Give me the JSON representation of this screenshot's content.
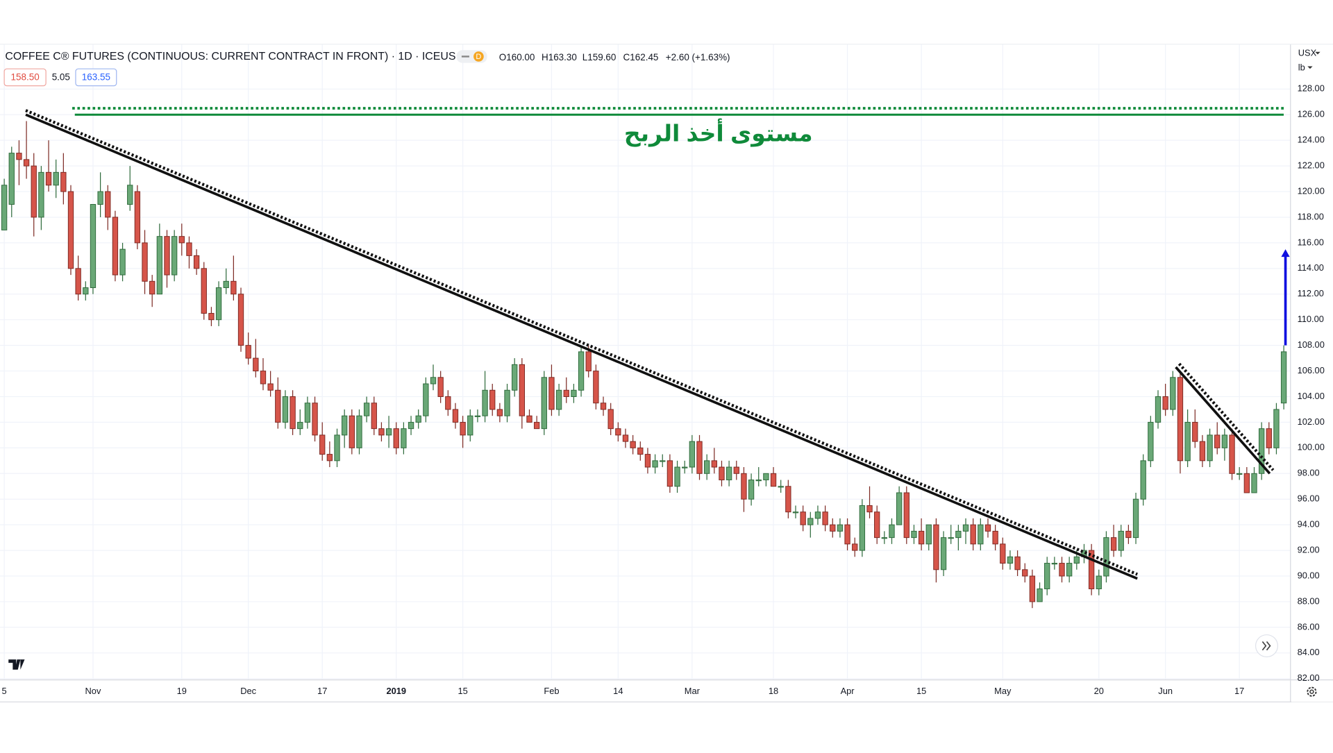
{
  "header": {
    "title": "COFFEE C® FUTURES (CONTINUOUS: CURRENT CONTRACT IN FRONT) · 1D · ICEUS",
    "badge": "D",
    "open": "O160.00",
    "high": "H163.30",
    "low": "L159.60",
    "close": "C162.45",
    "change": "+2.60 (+1.63%)",
    "bid": "158.50",
    "spread": "5.05",
    "ask": "163.55",
    "currency": "USX",
    "unit": "lb"
  },
  "chart_data": {
    "type": "candlestick",
    "categories": [
      "5",
      null,
      null,
      null,
      null,
      null,
      null,
      null,
      null,
      null,
      null,
      null,
      "Nov",
      null,
      null,
      null,
      null,
      null,
      null,
      null,
      null,
      null,
      null,
      null,
      "19",
      null,
      null,
      null,
      null,
      null,
      null,
      null,
      null,
      "Dec",
      null,
      null,
      null,
      null,
      null,
      null,
      null,
      null,
      null,
      "17",
      null,
      null,
      null,
      null,
      null,
      null,
      null,
      null,
      null,
      "2019",
      null,
      null,
      null,
      null,
      null,
      null,
      null,
      null,
      "15",
      null,
      null,
      null,
      null,
      null,
      null,
      null,
      null,
      null,
      null,
      null,
      "Feb",
      null,
      null,
      null,
      null,
      null,
      null,
      null,
      null,
      "14",
      null,
      null,
      null,
      null,
      null,
      null,
      null,
      null,
      null,
      "Mar",
      null,
      null,
      null,
      null,
      null,
      null,
      null,
      null,
      null,
      null,
      "18",
      null,
      null,
      null,
      null,
      null,
      null,
      null,
      null,
      null,
      "Apr",
      null,
      null,
      null,
      null,
      null,
      null,
      null,
      null,
      null,
      "15",
      null,
      null,
      null,
      null,
      null,
      null,
      null,
      null,
      null,
      null,
      "May",
      null,
      null,
      null,
      null,
      null,
      null,
      null,
      null,
      null,
      null,
      null,
      null,
      "20",
      null,
      null,
      null,
      null,
      null,
      null,
      null,
      null,
      "Jun",
      null,
      null,
      null,
      null,
      null,
      null,
      null,
      null,
      null,
      "17",
      null,
      null,
      null,
      null,
      null,
      null
    ],
    "candles": [
      [
        117,
        121,
        117,
        120.5
      ],
      [
        119,
        123.5,
        118,
        123
      ],
      [
        123,
        124,
        120.5,
        122.5
      ],
      [
        122.5,
        125.5,
        121,
        122
      ],
      [
        122,
        123,
        116.5,
        118
      ],
      [
        118,
        122,
        117,
        121.5
      ],
      [
        121.5,
        124,
        120,
        120.5
      ],
      [
        120.5,
        122.5,
        119.5,
        121.5
      ],
      [
        121.5,
        123,
        119,
        120
      ],
      [
        120,
        120.5,
        113.5,
        114
      ],
      [
        114,
        115,
        111.5,
        112
      ],
      [
        112,
        113,
        111.5,
        112.5
      ],
      [
        112.5,
        119,
        112,
        119
      ],
      [
        119,
        121.5,
        118,
        120
      ],
      [
        120,
        120.5,
        117,
        118
      ],
      [
        118,
        118.5,
        113,
        113.5
      ],
      [
        113.5,
        116,
        113,
        115.5
      ],
      [
        119,
        122,
        118.5,
        120.5
      ],
      [
        120,
        120.5,
        115.5,
        116
      ],
      [
        116,
        117,
        112,
        113
      ],
      [
        113,
        113.5,
        111,
        112
      ],
      [
        112,
        117.5,
        112,
        116.5
      ],
      [
        116.5,
        117,
        112.5,
        113.5
      ],
      [
        113.5,
        117,
        113,
        116.5
      ],
      [
        116.5,
        117.5,
        115,
        116
      ],
      [
        116,
        116.5,
        114,
        115
      ],
      [
        115,
        115.5,
        113.5,
        114
      ],
      [
        114,
        114.5,
        110,
        110.5
      ],
      [
        110.5,
        111,
        109.5,
        110
      ],
      [
        110,
        113,
        109.5,
        112.5
      ],
      [
        112.5,
        114,
        112,
        113
      ],
      [
        113,
        115,
        111.5,
        112
      ],
      [
        112,
        112.5,
        107.5,
        108
      ],
      [
        108,
        109,
        106.5,
        107
      ],
      [
        107,
        108.5,
        105.5,
        106
      ],
      [
        106,
        107,
        104.5,
        105
      ],
      [
        105,
        106,
        104,
        104.5
      ],
      [
        104.5,
        105.5,
        101.5,
        102
      ],
      [
        102,
        104.5,
        101.5,
        104
      ],
      [
        104,
        104.5,
        101,
        101.5
      ],
      [
        101.5,
        103,
        101,
        102
      ],
      [
        102,
        104,
        101.5,
        103.5
      ],
      [
        103.5,
        104,
        100.5,
        101
      ],
      [
        101,
        102,
        99,
        99.5
      ],
      [
        99.5,
        100.5,
        98.5,
        99
      ],
      [
        99,
        101.5,
        98.5,
        101
      ],
      [
        101,
        103,
        100,
        102.5
      ],
      [
        102.5,
        103,
        99.5,
        100
      ],
      [
        100,
        103,
        99.5,
        102.5
      ],
      [
        102.5,
        104,
        102,
        103.5
      ],
      [
        103.5,
        104,
        101,
        101.5
      ],
      [
        101.5,
        102,
        100.5,
        101
      ],
      [
        101,
        102.5,
        100,
        101.5
      ],
      [
        101.5,
        102,
        99.5,
        100
      ],
      [
        100,
        102,
        99.5,
        101.5
      ],
      [
        101.5,
        102.5,
        101,
        102
      ],
      [
        102,
        103,
        101.5,
        102.5
      ],
      [
        102.5,
        105.5,
        102,
        105
      ],
      [
        105,
        106.5,
        104.5,
        105.5
      ],
      [
        105.5,
        106,
        103.5,
        104
      ],
      [
        104,
        104.5,
        102.5,
        103
      ],
      [
        103,
        103.5,
        101.5,
        102
      ],
      [
        102,
        102.5,
        100,
        101
      ],
      [
        101,
        103,
        100.5,
        102.5
      ],
      [
        102.5,
        103,
        102,
        102.5
      ],
      [
        102.5,
        106,
        102,
        104.5
      ],
      [
        104.5,
        105,
        102.5,
        103
      ],
      [
        103,
        103.5,
        102,
        102.5
      ],
      [
        102.5,
        105,
        102,
        104.5
      ],
      [
        104.5,
        107,
        104,
        106.5
      ],
      [
        106.5,
        107,
        101.5,
        102.5
      ],
      [
        102.5,
        103,
        102,
        102
      ],
      [
        102,
        102.5,
        101.5,
        101.5
      ],
      [
        101.5,
        106,
        101,
        105.5
      ],
      [
        105.5,
        106.5,
        102.5,
        103
      ],
      [
        103,
        105,
        102.5,
        104.5
      ],
      [
        104.5,
        105.5,
        103.5,
        104
      ],
      [
        104,
        105,
        103.5,
        104.5
      ],
      [
        104.5,
        108,
        104,
        107.5
      ],
      [
        107.5,
        108,
        105.5,
        106
      ],
      [
        106,
        106.5,
        103,
        103.5
      ],
      [
        103.5,
        104,
        102.5,
        103
      ],
      [
        103,
        103.5,
        101,
        101.5
      ],
      [
        101.5,
        102,
        100.5,
        101
      ],
      [
        101,
        101.5,
        100,
        100.5
      ],
      [
        100.5,
        101,
        99.5,
        100
      ],
      [
        100,
        100.5,
        99,
        99.5
      ],
      [
        99.5,
        100,
        98,
        98.5
      ],
      [
        98.5,
        99.5,
        98,
        99
      ],
      [
        99,
        99.5,
        98.5,
        99
      ],
      [
        99,
        99.5,
        96.5,
        97
      ],
      [
        97,
        99,
        96.5,
        98.5
      ],
      [
        98.5,
        99,
        98,
        98.5
      ],
      [
        98.5,
        101,
        98,
        100.5
      ],
      [
        100.5,
        101,
        97.5,
        98
      ],
      [
        98,
        99.5,
        97.5,
        99
      ],
      [
        99,
        100,
        98,
        98.5
      ],
      [
        98.5,
        99,
        97,
        97.5
      ],
      [
        97.5,
        99,
        97,
        98.5
      ],
      [
        98.5,
        99,
        97.5,
        98
      ],
      [
        98,
        98.5,
        95,
        96
      ],
      [
        96,
        98,
        95.5,
        97.5
      ],
      [
        97.5,
        98.5,
        97,
        97.5
      ],
      [
        97.5,
        98,
        97,
        98
      ],
      [
        98,
        98.5,
        97,
        97
      ],
      [
        97,
        97.5,
        96.5,
        97
      ],
      [
        97,
        97.5,
        94.5,
        95
      ],
      [
        95,
        95.5,
        94.5,
        95
      ],
      [
        95,
        95.5,
        93.5,
        94
      ],
      [
        94,
        95,
        93,
        94.5
      ],
      [
        94.5,
        95.5,
        94,
        95
      ],
      [
        95,
        95.5,
        93.5,
        94
      ],
      [
        94,
        94.5,
        93,
        93.5
      ],
      [
        93.5,
        94.5,
        93,
        94
      ],
      [
        94,
        94.5,
        92,
        92.5
      ],
      [
        92.5,
        93,
        91.5,
        92
      ],
      [
        92,
        96,
        91.5,
        95.5
      ],
      [
        95.5,
        97,
        94.5,
        95
      ],
      [
        95,
        95.5,
        92.5,
        93
      ],
      [
        93,
        93.5,
        92.5,
        93
      ],
      [
        93,
        94.5,
        92.5,
        94
      ],
      [
        94,
        97,
        94,
        96.5
      ],
      [
        96.5,
        97,
        92.5,
        93
      ],
      [
        93,
        94,
        92.5,
        93.5
      ],
      [
        93.5,
        94.5,
        92,
        92.5
      ],
      [
        92.5,
        94,
        92,
        94
      ],
      [
        94,
        94.5,
        89.5,
        90.5
      ],
      [
        90.5,
        93.5,
        90,
        93
      ],
      [
        93,
        94,
        92.5,
        93
      ],
      [
        93,
        94,
        92,
        93.5
      ],
      [
        93.5,
        94.5,
        92.5,
        94
      ],
      [
        94,
        94.5,
        92,
        92.5
      ],
      [
        92.5,
        94.5,
        92,
        94
      ],
      [
        94,
        94.5,
        93,
        93.5
      ],
      [
        93.5,
        94,
        92,
        92.5
      ],
      [
        92.5,
        93,
        90.5,
        91
      ],
      [
        91,
        92,
        90.5,
        91.5
      ],
      [
        91.5,
        92,
        90,
        90.5
      ],
      [
        90.5,
        91,
        89.5,
        90
      ],
      [
        90,
        90.5,
        87.5,
        88
      ],
      [
        88,
        89.5,
        88,
        89
      ],
      [
        89,
        91.5,
        88.5,
        91
      ],
      [
        91,
        91.5,
        90.5,
        91
      ],
      [
        91,
        91.5,
        89.5,
        90
      ],
      [
        90,
        91.5,
        89.5,
        91
      ],
      [
        91,
        92,
        90.5,
        91.5
      ],
      [
        91.5,
        92.5,
        91,
        92
      ],
      [
        92,
        92.5,
        88.5,
        89
      ],
      [
        89,
        90.5,
        88.5,
        90
      ],
      [
        90,
        93.5,
        89.5,
        93
      ],
      [
        93,
        94,
        91.5,
        92
      ],
      [
        92,
        94,
        91.5,
        93.5
      ],
      [
        93.5,
        94,
        92.5,
        93
      ],
      [
        93,
        96.5,
        92.5,
        96
      ],
      [
        96,
        99.5,
        95.5,
        99
      ],
      [
        99,
        102.5,
        98.5,
        102
      ],
      [
        102,
        104.5,
        101.5,
        104
      ],
      [
        104,
        105,
        102.5,
        103
      ],
      [
        103,
        106,
        102.5,
        105.5
      ],
      [
        105.5,
        106,
        98,
        99
      ],
      [
        99,
        103,
        98.5,
        102
      ],
      [
        102,
        103,
        100,
        100.5
      ],
      [
        100.5,
        101,
        98.5,
        99
      ],
      [
        99,
        101.5,
        98.5,
        101
      ],
      [
        101,
        102,
        99.5,
        100
      ],
      [
        100,
        101.5,
        99,
        101
      ],
      [
        101,
        101.5,
        97.5,
        98
      ],
      [
        98,
        98.5,
        97.5,
        98
      ],
      [
        98,
        98.5,
        96.5,
        96.5
      ],
      [
        96.5,
        98.5,
        96.5,
        98
      ],
      [
        98,
        102,
        97.5,
        101.5
      ],
      [
        101.5,
        102,
        99.5,
        100
      ],
      [
        100,
        103.5,
        99.5,
        103
      ],
      [
        103.5,
        108,
        103,
        107.5
      ]
    ],
    "up_color": "#6aa877",
    "down_color": "#d6554a",
    "ylim": [
      81.9,
      131.5
    ],
    "yticks": [
      {
        "value": 82,
        "label": "82.00"
      },
      {
        "value": 84,
        "label": "84.00"
      },
      {
        "value": 86,
        "label": "86.00"
      },
      {
        "value": 88,
        "label": "88.00"
      },
      {
        "value": 90,
        "label": "90.00"
      },
      {
        "value": 92,
        "label": "92.00"
      },
      {
        "value": 94,
        "label": "94.00"
      },
      {
        "value": 96,
        "label": "96.00"
      },
      {
        "value": 98,
        "label": "98.00"
      },
      {
        "value": 100,
        "label": "100.00"
      },
      {
        "value": 102,
        "label": "102.00"
      },
      {
        "value": 104,
        "label": "104.00"
      },
      {
        "value": 106,
        "label": "106.00"
      },
      {
        "value": 108,
        "label": "108.00"
      },
      {
        "value": 110,
        "label": "110.00"
      },
      {
        "value": 112,
        "label": "112.00"
      },
      {
        "value": 114,
        "label": "114.00"
      },
      {
        "value": 116,
        "label": "116.00"
      },
      {
        "value": 118,
        "label": "118.00"
      },
      {
        "value": 120,
        "label": "120.00"
      },
      {
        "value": 122,
        "label": "122.00"
      },
      {
        "value": 124,
        "label": "124.00"
      },
      {
        "value": 126,
        "label": "126.00"
      },
      {
        "value": 128,
        "label": "128.00"
      }
    ],
    "grid": true,
    "annotations": {
      "take_profit": {
        "label": "مستوى أخذ الربح",
        "level": 126,
        "dotted_level": 126.5,
        "color": "#0f8a3a"
      },
      "trendlines": [
        {
          "x": [
            2.9,
            153.2
          ],
          "y": [
            126,
            89.8
          ]
        },
        {
          "x": [
            158.4,
            171.1
          ],
          "y": [
            106.3,
            98
          ]
        }
      ],
      "arrow": {
        "from": 108,
        "to": 115.5,
        "color": "#1010e0"
      }
    }
  }
}
